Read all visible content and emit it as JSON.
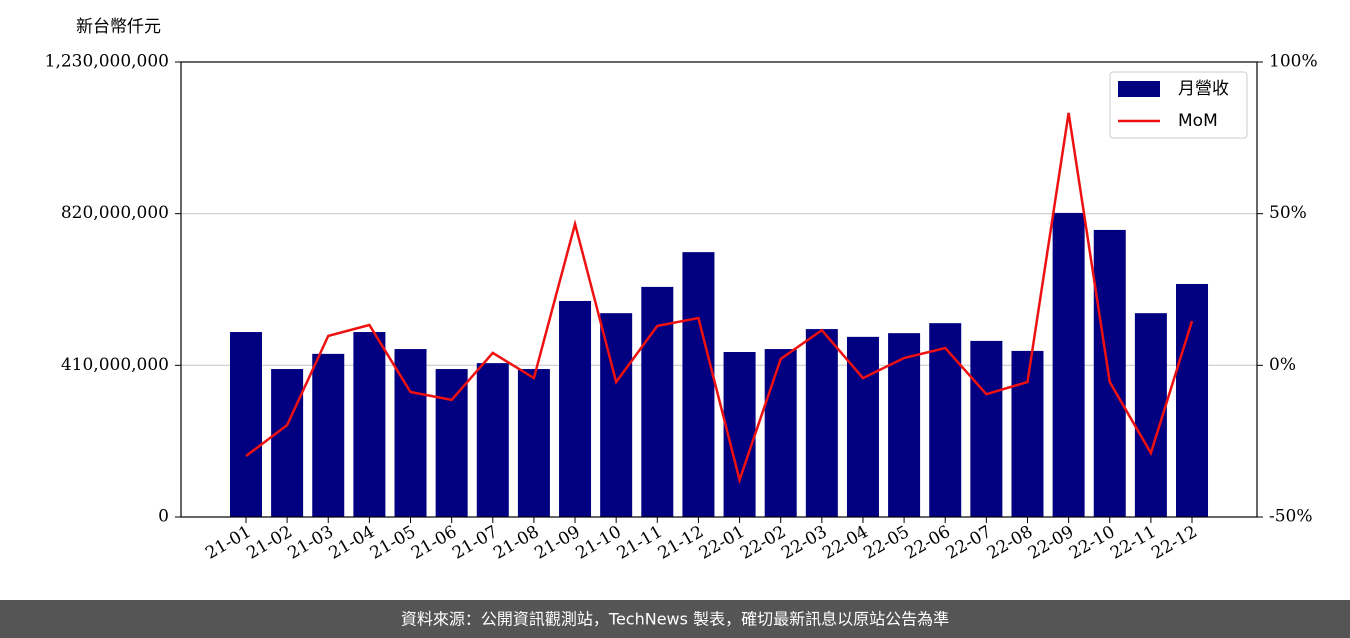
{
  "chart_data": {
    "type": "bar",
    "y_label": "新台幣仟元",
    "categories": [
      "21-01",
      "21-02",
      "21-03",
      "21-04",
      "21-05",
      "21-06",
      "21-07",
      "21-08",
      "21-09",
      "21-10",
      "21-11",
      "21-12",
      "22-01",
      "22-02",
      "22-03",
      "22-04",
      "22-05",
      "22-06",
      "22-07",
      "22-08",
      "22-09",
      "22-10",
      "22-11",
      "22-12"
    ],
    "series": [
      {
        "name": "月營收",
        "type": "bar",
        "color": "#000080",
        "values": [
          500000000,
          400000000,
          441000000,
          500000000,
          454000000,
          400000000,
          416000000,
          400000000,
          584000000,
          551000000,
          622000000,
          716000000,
          446000000,
          454000000,
          508000000,
          487000000,
          497000000,
          524000000,
          476000000,
          449000000,
          822000000,
          776000000,
          551000000,
          630000000
        ]
      },
      {
        "name": "MoM",
        "type": "line",
        "color": "#ee1111",
        "axis": "y2",
        "values": [
          -29.9,
          -19.7,
          9.7,
          13.3,
          -8.8,
          -11.4,
          4.1,
          -4.2,
          46.6,
          -5.5,
          13.0,
          15.6,
          -37.8,
          2.1,
          11.6,
          -4.2,
          2.4,
          5.7,
          -9.5,
          -5.5,
          83.2,
          -5.5,
          -28.9,
          14.6
        ]
      }
    ],
    "ylim": [
      0,
      1230000000
    ],
    "yticks": [
      0,
      {
        "value": 410000000,
        "label": "410,000,000"
      },
      {
        "value": 820000000,
        "label": "820,000,000"
      },
      {
        "value": 1230000000,
        "label": "1,230,000,000"
      }
    ],
    "y2lim": [
      -50,
      100
    ],
    "y2ticks": [
      {
        "value": -50,
        "label": "-50%"
      },
      {
        "value": 0,
        "label": "0%"
      },
      {
        "value": 50,
        "label": "50%"
      },
      {
        "value": 100,
        "label": "100%"
      }
    ],
    "grid": true,
    "legend": "upper right"
  },
  "footer": "資料來源：公開資訊觀測站，TechNews 製表，確切最新訊息以原站公告為準"
}
